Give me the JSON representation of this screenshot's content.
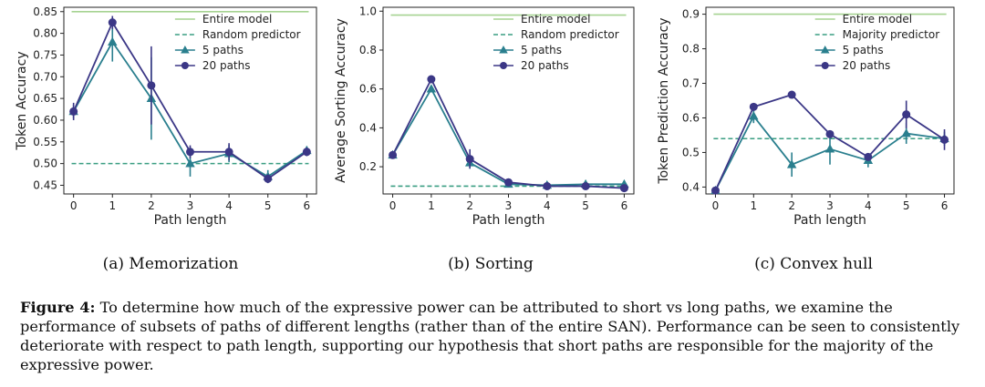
{
  "chart_data": [
    {
      "type": "line",
      "xlabel": "Path length",
      "ylabel": "Token Accuracy",
      "x": [
        0,
        1,
        2,
        3,
        4,
        5,
        6
      ],
      "ylim": [
        0.43,
        0.86
      ],
      "yticks": [
        0.45,
        0.5,
        0.55,
        0.6,
        0.65,
        0.7,
        0.75,
        0.8,
        0.85
      ],
      "yticklabels": [
        "0.45",
        "0.50",
        "0.55",
        "0.60",
        "0.65",
        "0.70",
        "0.75",
        "0.80",
        "0.85"
      ],
      "grid": false,
      "legend_position": "top-right",
      "reference_lines": [
        {
          "name": "Entire model",
          "value": 0.85,
          "color": "#a6d391",
          "style": "solid"
        },
        {
          "name": "Random predictor",
          "value": 0.5,
          "color": "#3a9e82",
          "style": "dashed"
        }
      ],
      "series": [
        {
          "name": "5 paths",
          "marker": "triangle",
          "color": "#2a7f8e",
          "values": [
            0.62,
            0.78,
            0.65,
            0.5,
            0.523,
            0.47,
            0.53
          ],
          "errors": [
            0.015,
            0.045,
            0.095,
            0.03,
            0.02,
            0.015,
            0.01
          ]
        },
        {
          "name": "20 paths",
          "marker": "circle",
          "color": "#3b3786",
          "values": [
            0.62,
            0.825,
            0.68,
            0.527,
            0.527,
            0.465,
            0.527
          ],
          "errors": [
            0.02,
            0.015,
            0.09,
            0.015,
            0.02,
            0.01,
            0.01
          ]
        }
      ]
    },
    {
      "type": "line",
      "xlabel": "Path length",
      "ylabel": "Average Sorting Accuracy",
      "x": [
        0,
        1,
        2,
        3,
        4,
        5,
        6
      ],
      "ylim": [
        0.06,
        1.02
      ],
      "yticks": [
        0.2,
        0.4,
        0.6,
        0.8,
        1.0
      ],
      "yticklabels": [
        "0.2",
        "0.4",
        "0.6",
        "0.8",
        "1.0"
      ],
      "grid": false,
      "legend_position": "top-right",
      "reference_lines": [
        {
          "name": "Entire model",
          "value": 0.98,
          "color": "#a6d391",
          "style": "solid"
        },
        {
          "name": "Random predictor",
          "value": 0.1,
          "color": "#3a9e82",
          "style": "dashed"
        }
      ],
      "series": [
        {
          "name": "5 paths",
          "marker": "triangle",
          "color": "#2a7f8e",
          "values": [
            0.26,
            0.6,
            0.22,
            0.11,
            0.105,
            0.11,
            0.11
          ],
          "errors": [
            0.01,
            0.01,
            0.03,
            0.01,
            0.01,
            0.01,
            0.01
          ]
        },
        {
          "name": "20 paths",
          "marker": "circle",
          "color": "#3b3786",
          "values": [
            0.26,
            0.65,
            0.24,
            0.12,
            0.1,
            0.1,
            0.09
          ],
          "errors": [
            0.01,
            0.01,
            0.05,
            0.01,
            0.01,
            0.01,
            0.01
          ]
        }
      ]
    },
    {
      "type": "line",
      "xlabel": "Path length",
      "ylabel": "Token Prediction Accuracy",
      "x": [
        0,
        1,
        2,
        3,
        4,
        5,
        6
      ],
      "ylim": [
        0.38,
        0.92
      ],
      "yticks": [
        0.4,
        0.5,
        0.6,
        0.7,
        0.8,
        0.9
      ],
      "yticklabels": [
        "0.4",
        "0.5",
        "0.6",
        "0.7",
        "0.8",
        "0.9"
      ],
      "grid": false,
      "legend_position": "top-right",
      "reference_lines": [
        {
          "name": "Entire model",
          "value": 0.9,
          "color": "#a6d391",
          "style": "solid"
        },
        {
          "name": "Majority predictor",
          "value": 0.54,
          "color": "#3a9e82",
          "style": "dashed"
        }
      ],
      "series": [
        {
          "name": "5 paths",
          "marker": "triangle",
          "color": "#2a7f8e",
          "values": [
            0.39,
            0.605,
            0.465,
            0.51,
            0.477,
            0.555,
            0.54
          ],
          "errors": [
            0.005,
            0.02,
            0.035,
            0.045,
            0.02,
            0.03,
            0.02
          ]
        },
        {
          "name": "20 paths",
          "marker": "circle",
          "color": "#3b3786",
          "values": [
            0.39,
            0.632,
            0.667,
            0.553,
            0.487,
            0.61,
            0.537
          ],
          "errors": [
            0.005,
            0.008,
            0.008,
            0.008,
            0.01,
            0.04,
            0.03
          ]
        }
      ]
    }
  ],
  "subcaptions": [
    "(a) Memorization",
    "(b) Sorting",
    "(c) Convex hull"
  ],
  "caption": {
    "label": "Figure 4:",
    "text": " To determine how much of the expressive power can be attributed to short vs long paths, we examine the performance of subsets of paths of different lengths (rather than of the entire SAN). Performance can be seen to consistently deteriorate with respect to path length, supporting our hypothesis that short paths are responsible for the majority of the expressive power."
  }
}
